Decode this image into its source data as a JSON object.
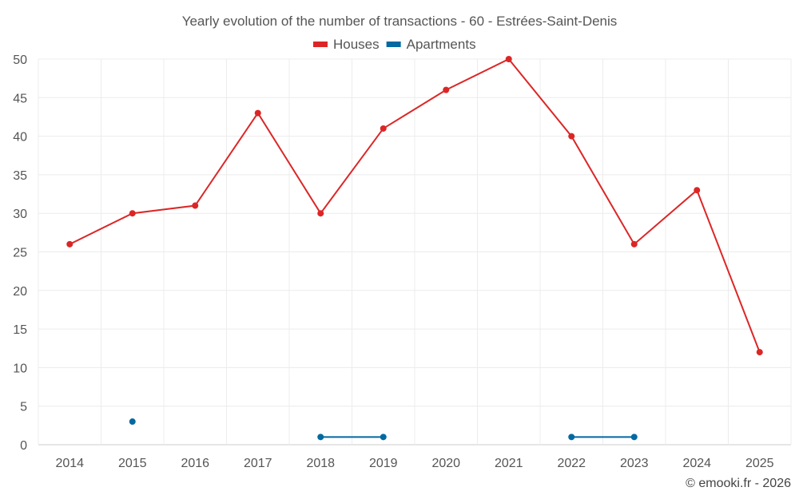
{
  "chart_data": {
    "type": "line",
    "title": "Yearly evolution of the number of transactions - 60 - Estrées-Saint-Denis",
    "categories": [
      "2014",
      "2015",
      "2016",
      "2017",
      "2018",
      "2019",
      "2020",
      "2021",
      "2022",
      "2023",
      "2024",
      "2025"
    ],
    "series": [
      {
        "name": "Houses",
        "color": "#dc2626",
        "values": [
          26,
          30,
          31,
          43,
          30,
          41,
          46,
          50,
          40,
          26,
          33,
          12
        ]
      },
      {
        "name": "Apartments",
        "color": "#0369a1",
        "values": [
          null,
          3,
          null,
          null,
          1,
          1,
          null,
          null,
          1,
          1,
          null,
          null
        ]
      }
    ],
    "ylim": [
      0,
      50
    ],
    "yticks": [
      "0",
      "5",
      "10",
      "15",
      "20",
      "25",
      "30",
      "35",
      "40",
      "45",
      "50"
    ],
    "grid": true,
    "legend": "top-center",
    "xlabel": "",
    "ylabel": ""
  },
  "credit": "© emooki.fr - 2026"
}
